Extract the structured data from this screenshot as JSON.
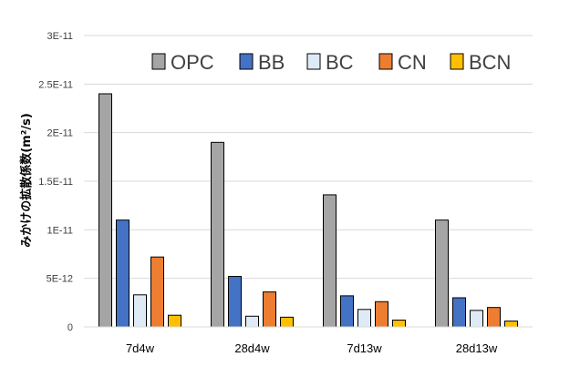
{
  "chart_data": {
    "type": "bar",
    "ylabel": "みかけの拡散係数(m²/s)",
    "ylim": [
      0,
      3e-11
    ],
    "yticks": [
      {
        "value": 0,
        "label": "0"
      },
      {
        "value": 5e-12,
        "label": "5E-12"
      },
      {
        "value": 1e-11,
        "label": "1E-11"
      },
      {
        "value": 1.5e-11,
        "label": "1.5E-11"
      },
      {
        "value": 2e-11,
        "label": "2E-11"
      },
      {
        "value": 2.5e-11,
        "label": "2.5E-11"
      },
      {
        "value": 3e-11,
        "label": "3E-11"
      }
    ],
    "categories": [
      "7d4w",
      "28d4w",
      "7d13w",
      "28d13w"
    ],
    "series": [
      {
        "name": "OPC",
        "color": "#A5A5A5",
        "values": [
          2.4e-11,
          1.9e-11,
          1.36e-11,
          1.1e-11
        ]
      },
      {
        "name": "BB",
        "color": "#4472C4",
        "values": [
          1.1e-11,
          5.2e-12,
          3.2e-12,
          3e-12
        ]
      },
      {
        "name": "BC",
        "color": "#DEEBF7",
        "values": [
          3.3e-12,
          1.1e-12,
          1.8e-12,
          1.7e-12
        ]
      },
      {
        "name": "CN",
        "color": "#ED7D31",
        "values": [
          7.2e-12,
          3.6e-12,
          2.6e-12,
          2e-12
        ]
      },
      {
        "name": "BCN",
        "color": "#FFC000",
        "values": [
          1.2e-12,
          1e-12,
          7e-13,
          6e-13
        ]
      }
    ],
    "legend_position": "top-right",
    "grid": true
  }
}
